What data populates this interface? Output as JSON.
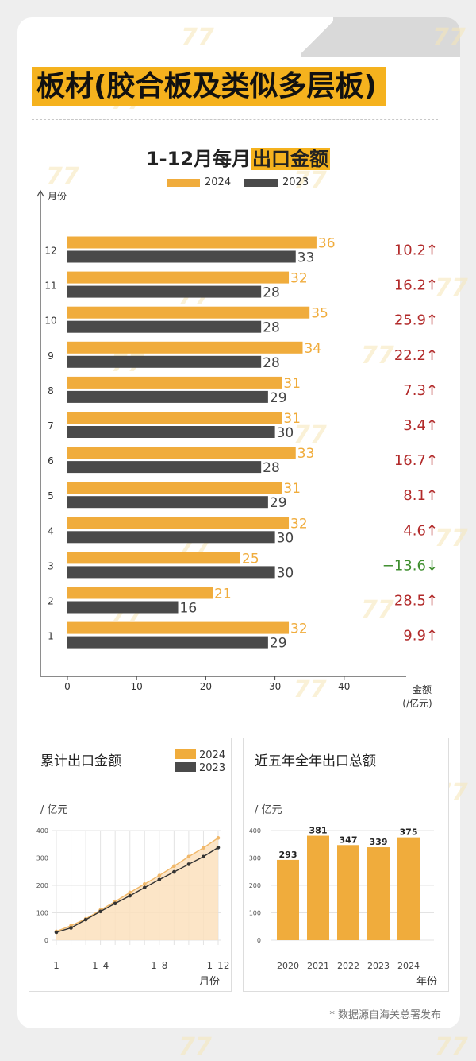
{
  "title": "板材(胶合板及类似多层板)",
  "main_chart_title_plain": "1-12月每月",
  "main_chart_title_highlight": "出口金额",
  "source": "* 数据源自海关总署发布",
  "colors": {
    "y2024": "#f0ac3c",
    "y2023": "#4a4a4a",
    "up": "#b22a2a",
    "down": "#3e8e2e",
    "accent": "#f5b21e"
  },
  "chart_data": [
    {
      "type": "bar",
      "orientation": "horizontal",
      "categories": [
        "1",
        "2",
        "3",
        "4",
        "5",
        "6",
        "7",
        "8",
        "9",
        "10",
        "11",
        "12"
      ],
      "series": [
        {
          "name": "2024",
          "values": [
            32,
            21,
            25,
            32,
            31,
            33,
            31,
            31,
            34,
            35,
            32,
            36
          ]
        },
        {
          "name": "2023",
          "values": [
            29,
            16,
            30,
            30,
            29,
            28,
            30,
            29,
            28,
            28,
            28,
            33
          ]
        }
      ],
      "growth": [
        "9.9",
        "28.5",
        "−13.6",
        "4.6",
        "8.1",
        "16.7",
        "3.4",
        "7.3",
        "22.2",
        "25.9",
        "16.2",
        "10.2"
      ],
      "growth_dir": [
        "up",
        "up",
        "down",
        "up",
        "up",
        "up",
        "up",
        "up",
        "up",
        "up",
        "up",
        "up"
      ],
      "growth_arrows": {
        "up": "↑",
        "down": "↓"
      },
      "xlabel": "金额",
      "xunit": "(/亿元)",
      "ylabel": "月份",
      "xlim": [
        0,
        40
      ],
      "xticks": [
        0,
        10,
        20,
        30,
        40
      ],
      "legend": "top-center"
    },
    {
      "type": "area",
      "title": "累计出口金额",
      "ylabel": "/ 亿元",
      "xlabel": "月份",
      "xticks": [
        "1",
        "1–4",
        "1–8",
        "1–12"
      ],
      "yticks": [
        0,
        100,
        200,
        300,
        400
      ],
      "ylim": [
        0,
        400
      ],
      "x": [
        1,
        2,
        3,
        4,
        5,
        6,
        7,
        8,
        9,
        10,
        11,
        12
      ],
      "series": [
        {
          "name": "2024",
          "values": [
            32,
            53,
            78,
            110,
            141,
            174,
            205,
            236,
            270,
            305,
            337,
            373
          ]
        },
        {
          "name": "2023",
          "values": [
            29,
            45,
            75,
            105,
            134,
            162,
            192,
            221,
            249,
            277,
            305,
            338
          ]
        }
      ],
      "legend": "top-right",
      "grid": true
    },
    {
      "type": "bar",
      "title": "近五年全年出口总额",
      "ylabel": "/ 亿元",
      "xlabel": "年份",
      "categories": [
        "2020",
        "2021",
        "2022",
        "2023",
        "2024"
      ],
      "values": [
        293,
        381,
        347,
        339,
        375
      ],
      "yticks": [
        0,
        100,
        200,
        300,
        400
      ],
      "ylim": [
        0,
        400
      ],
      "grid": true
    }
  ]
}
